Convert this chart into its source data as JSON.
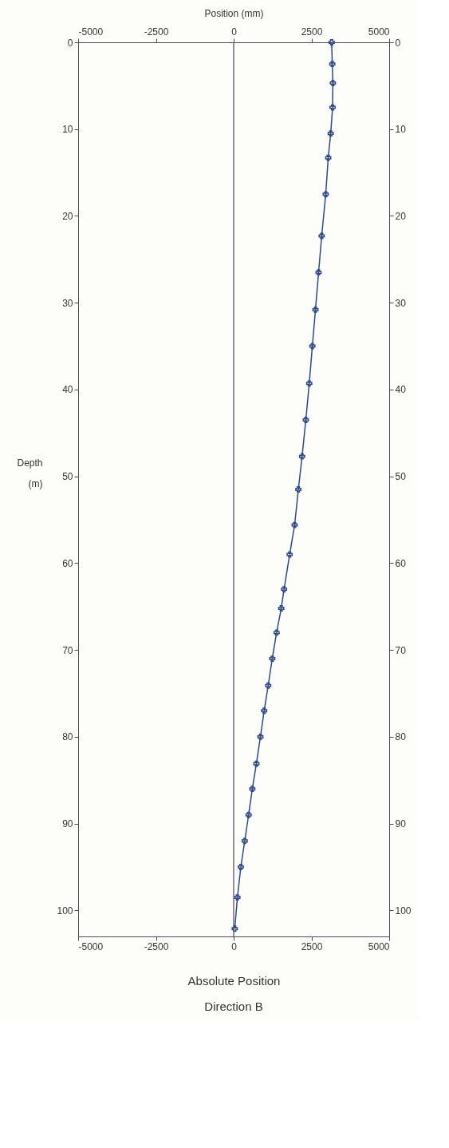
{
  "chart_data": {
    "type": "line",
    "title": "Direction B",
    "xlabel": "Absolute Position",
    "x2label": "Position (mm)",
    "ylabel": "Depth (m)",
    "xlim": [
      -5000,
      5000
    ],
    "xticks": [
      -5000,
      -2500,
      0,
      2500,
      5000
    ],
    "x2lim": [
      -5000,
      5000
    ],
    "x2ticks": [
      -5000,
      -2500,
      0,
      2500,
      5000
    ],
    "ylim": [
      103,
      0
    ],
    "yticks": [
      0,
      10,
      20,
      30,
      40,
      50,
      60,
      70,
      80,
      90,
      100
    ],
    "y2lim": [
      103,
      0
    ],
    "y2ticks": [
      0,
      10,
      20,
      30,
      40,
      50,
      60,
      70,
      80,
      90,
      100
    ],
    "marker": "cross",
    "ref_lines": [
      {
        "axis": "x",
        "value": 0,
        "color": "#4a4a5a"
      }
    ],
    "series": [
      {
        "color": "#2b4a8f",
        "x": [
          3150,
          3170,
          3190,
          3180,
          3120,
          3040,
          2960,
          2830,
          2730,
          2630,
          2530,
          2430,
          2320,
          2200,
          2080,
          1960,
          1800,
          1620,
          1530,
          1380,
          1240,
          1110,
          980,
          860,
          730,
          600,
          480,
          355,
          230,
          120,
          35
        ],
        "values": [
          0,
          2.5,
          4.7,
          7.5,
          10.5,
          13.3,
          17.5,
          22.3,
          26.5,
          30.8,
          35,
          39.3,
          43.5,
          47.7,
          51.5,
          55.6,
          59,
          63,
          65.2,
          68,
          71,
          74.1,
          77,
          80,
          83.1,
          86,
          89,
          92,
          95,
          98.5,
          102.1
        ]
      }
    ]
  }
}
